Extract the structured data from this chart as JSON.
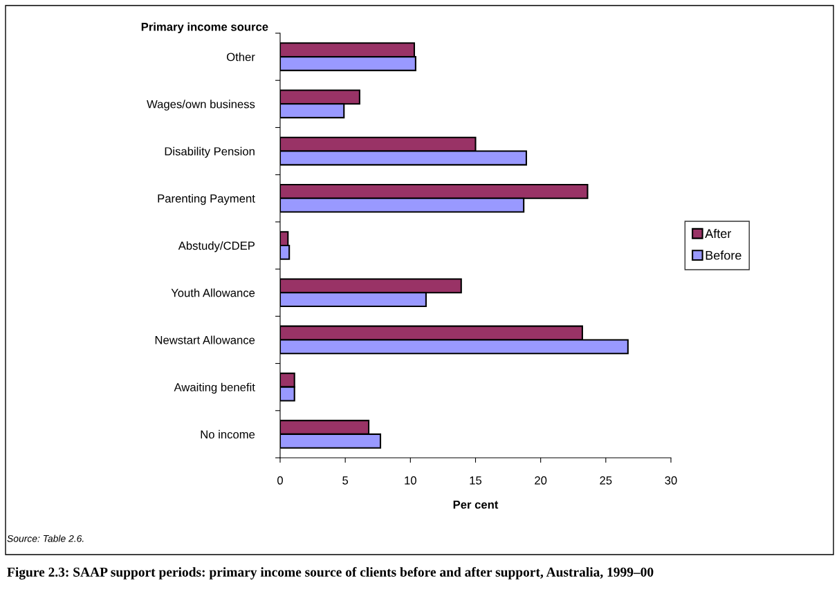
{
  "chart_data": {
    "type": "bar",
    "orientation": "horizontal",
    "title": "Figure 2.3: SAAP support periods: primary income source of clients before and after support, Australia, 1999–00",
    "xlabel": "Per cent",
    "ylabel": "Primary income source",
    "categories": [
      "Other",
      "Wages/own business",
      "Disability Pension",
      "Parenting Payment",
      "Abstudy/CDEP",
      "Youth Allowance",
      "Newstart Allowance",
      "Awaiting benefit",
      "No income"
    ],
    "series": [
      {
        "name": "After",
        "color": "#993366",
        "values": [
          10.3,
          6.1,
          15.0,
          23.6,
          0.6,
          13.9,
          23.2,
          1.1,
          6.8
        ]
      },
      {
        "name": "Before",
        "color": "#9999ff",
        "values": [
          10.4,
          4.9,
          18.9,
          18.7,
          0.7,
          11.2,
          26.7,
          1.1,
          7.7
        ]
      }
    ],
    "xlim": [
      0,
      30
    ],
    "xticks": [
      0,
      5,
      10,
      15,
      20,
      25,
      30
    ],
    "grid": false,
    "legend": "right",
    "annotations": [
      "Source: Table 2.6."
    ]
  }
}
